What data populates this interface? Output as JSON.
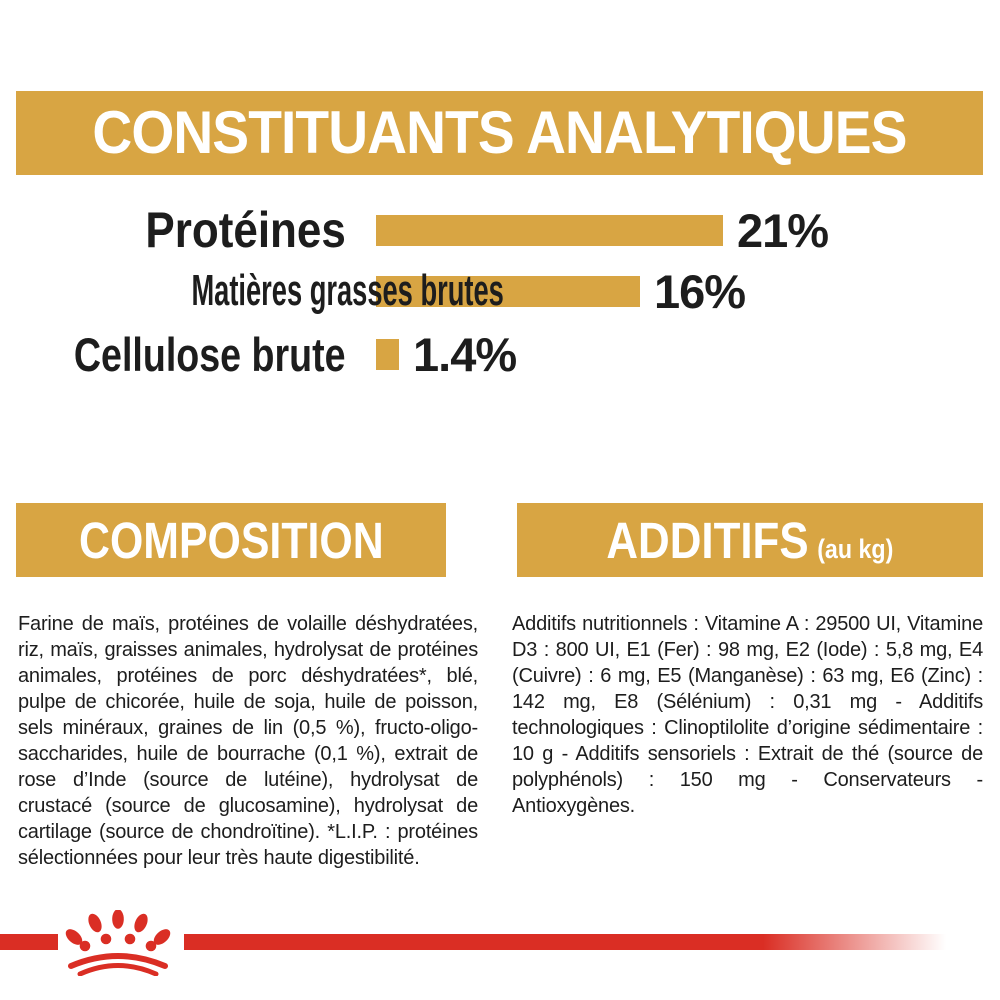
{
  "colors": {
    "gold": "#D8A543",
    "red": "#DA2E24",
    "text": "#1d1d1d",
    "banner_text": "#ffffff",
    "background": "#ffffff"
  },
  "analytical_section": {
    "title": "CONSTITUANTS ANALYTIQUES"
  },
  "chart_data": {
    "type": "bar",
    "orientation": "horizontal",
    "title": "CONSTITUANTS ANALYTIQUES",
    "unit": "%",
    "categories": [
      "Protéines",
      "Matières grasses brutes",
      "Cellulose brute"
    ],
    "values": [
      21,
      16,
      1.4
    ],
    "value_labels": [
      "21%",
      "16%",
      "1.4%"
    ],
    "xlim": [
      0,
      21
    ],
    "bar_color": "#D8A543",
    "grid": "off",
    "legend": "none"
  },
  "composition_section": {
    "title": "COMPOSITION",
    "body": "Farine de maïs, protéines de volaille déshydratées, riz, maïs, graisses animales, hydrolysat de protéines animales, protéines de porc déshydratées*, blé, pulpe de chicorée, huile de soja, huile de poisson, sels minéraux, graines de lin (0,5 %), fructo-oligo-saccharides, huile de bourrache (0,1 %), extrait de rose d’Inde (source de lutéine), hydrolysat de crustacé (source de glucosamine), hydrolysat de cartilage (source de chondroïtine). *L.I.P. : protéines sélectionnées pour leur très haute digestibilité."
  },
  "additives_section": {
    "title": "ADDITIFS",
    "title_suffix": "(au kg)",
    "body": "Additifs nutritionnels : Vitamine A : 29500 UI, Vitamine D3 : 800 UI, E1 (Fer) : 98 mg, E2 (Iode) : 5,8 mg, E4 (Cuivre) : 6 mg, E5 (Manganèse) : 63 mg, E6 (Zinc) : 142 mg, E8 (Sélénium) : 0,31 mg - Additifs technologiques : Clinoptilolite d’origine sédimentaire : 10 g - Additifs sensoriels : Extrait de thé (source de polyphénols) : 150 mg - Conservateurs - Antioxygènes."
  },
  "footer": {
    "logo_name": "royal-canin-crown-logo"
  }
}
